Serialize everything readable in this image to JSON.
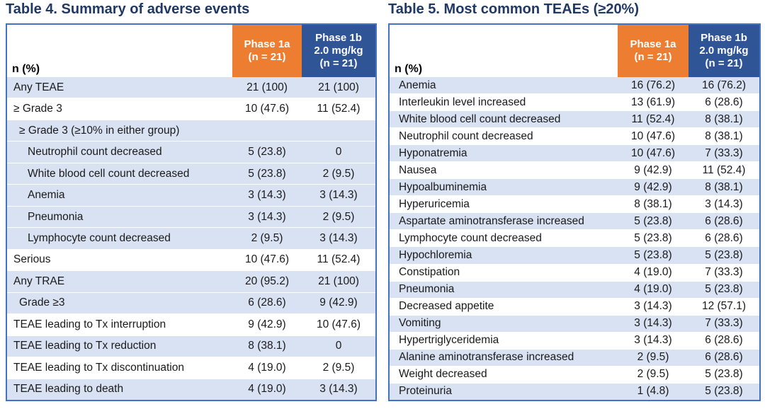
{
  "colors": {
    "title_navy": "#1F3864",
    "header_orange": "#ED7D31",
    "header_blue": "#2F5597",
    "shaded_row_blue": "#D9E2F3",
    "table_border_blue": "#4472C4",
    "header_text": "#FFFFFF",
    "body_text": "#1A1A1A"
  },
  "tables": [
    {
      "title": "Table 4. Summary of adverse events",
      "row_header": "n (%)",
      "columns": [
        {
          "name": "Phase 1a (n = 21)",
          "lines": [
            "Phase 1a",
            "(n = 21)"
          ]
        },
        {
          "name": "Phase 1b 2.0 mg/kg (n = 21)",
          "lines": [
            "Phase 1b",
            "2.0 mg/kg",
            "(n = 21)"
          ]
        }
      ],
      "rows": [
        {
          "label": "Any TEAE",
          "phase1a": "21 (100)",
          "phase1b": "21 (100)",
          "shaded": true,
          "indent": 0
        },
        {
          "label": "≥ Grade 3",
          "phase1a": "10 (47.6)",
          "phase1b": "11 (52.4)",
          "shaded": false,
          "indent": 0
        },
        {
          "label": "≥ Grade 3 (≥10% in either group)",
          "phase1a": "",
          "phase1b": "",
          "shaded": true,
          "indent": 1
        },
        {
          "label": "Neutrophil count decreased",
          "phase1a": "5 (23.8)",
          "phase1b": "0",
          "shaded": true,
          "indent": 2
        },
        {
          "label": "White blood cell count decreased",
          "phase1a": "5 (23.8)",
          "phase1b": "2 (9.5)",
          "shaded": true,
          "indent": 2
        },
        {
          "label": "Anemia",
          "phase1a": "3 (14.3)",
          "phase1b": "3 (14.3)",
          "shaded": true,
          "indent": 2
        },
        {
          "label": "Pneumonia",
          "phase1a": "3 (14.3)",
          "phase1b": "2 (9.5)",
          "shaded": true,
          "indent": 2
        },
        {
          "label": "Lymphocyte count decreased",
          "phase1a": "2 (9.5)",
          "phase1b": "3 (14.3)",
          "shaded": true,
          "indent": 2
        },
        {
          "label": "Serious",
          "phase1a": "10 (47.6)",
          "phase1b": "11 (52.4)",
          "shaded": false,
          "indent": 0
        },
        {
          "label": "Any TRAE",
          "phase1a": "20 (95.2)",
          "phase1b": "21 (100)",
          "shaded": true,
          "indent": 0
        },
        {
          "label": "Grade ≥3",
          "phase1a": "6 (28.6)",
          "phase1b": "9 (42.9)",
          "shaded": true,
          "indent": 1
        },
        {
          "label": "TEAE leading to Tx interruption",
          "phase1a": "9 (42.9)",
          "phase1b": "10 (47.6)",
          "shaded": false,
          "indent": 0
        },
        {
          "label": "TEAE leading to Tx reduction",
          "phase1a": "8 (38.1)",
          "phase1b": "0",
          "shaded": true,
          "indent": 0
        },
        {
          "label": "TEAE leading to Tx discontinuation",
          "phase1a": "4 (19.0)",
          "phase1b": "2 (9.5)",
          "shaded": false,
          "indent": 0
        },
        {
          "label": "TEAE leading to death",
          "phase1a": "4 (19.0)",
          "phase1b": "3 (14.3)",
          "shaded": true,
          "indent": 0
        }
      ]
    },
    {
      "title": "Table 5. Most common TEAEs (≥20%)",
      "row_header": "n (%)",
      "columns": [
        {
          "name": "Phase 1a (n = 21)",
          "lines": [
            "Phase 1a",
            "(n = 21)"
          ]
        },
        {
          "name": "Phase 1b 2.0 mg/kg (n = 21)",
          "lines": [
            "Phase 1b",
            "2.0 mg/kg",
            "(n = 21)"
          ]
        }
      ],
      "rows": [
        {
          "label": "Anemia",
          "phase1a": "16 (76.2)",
          "phase1b": "16 (76.2)",
          "shaded": true,
          "indent": 0
        },
        {
          "label": "Interleukin level increased",
          "phase1a": "13 (61.9)",
          "phase1b": "6 (28.6)",
          "shaded": false,
          "indent": 0
        },
        {
          "label": "White blood cell count decreased",
          "phase1a": "11 (52.4)",
          "phase1b": "8 (38.1)",
          "shaded": true,
          "indent": 0
        },
        {
          "label": "Neutrophil count decreased",
          "phase1a": "10 (47.6)",
          "phase1b": "8 (38.1)",
          "shaded": false,
          "indent": 0
        },
        {
          "label": "Hyponatremia",
          "phase1a": "10 (47.6)",
          "phase1b": "7 (33.3)",
          "shaded": true,
          "indent": 0
        },
        {
          "label": "Nausea",
          "phase1a": "9 (42.9)",
          "phase1b": "11 (52.4)",
          "shaded": false,
          "indent": 0
        },
        {
          "label": "Hypoalbuminemia",
          "phase1a": "9 (42.9)",
          "phase1b": "8 (38.1)",
          "shaded": true,
          "indent": 0
        },
        {
          "label": "Hyperuricemia",
          "phase1a": "8 (38.1)",
          "phase1b": "3 (14.3)",
          "shaded": false,
          "indent": 0
        },
        {
          "label": "Aspartate aminotransferase increased",
          "phase1a": "5 (23.8)",
          "phase1b": "6 (28.6)",
          "shaded": true,
          "indent": 0
        },
        {
          "label": "Lymphocyte count decreased",
          "phase1a": "5 (23.8)",
          "phase1b": "6 (28.6)",
          "shaded": false,
          "indent": 0
        },
        {
          "label": "Hypochloremia",
          "phase1a": "5 (23.8)",
          "phase1b": "5 (23.8)",
          "shaded": true,
          "indent": 0
        },
        {
          "label": "Constipation",
          "phase1a": "4 (19.0)",
          "phase1b": "7 (33.3)",
          "shaded": false,
          "indent": 0
        },
        {
          "label": "Pneumonia",
          "phase1a": "4 (19.0)",
          "phase1b": "5 (23.8)",
          "shaded": true,
          "indent": 0
        },
        {
          "label": "Decreased appetite",
          "phase1a": "3 (14.3)",
          "phase1b": "12 (57.1)",
          "shaded": false,
          "indent": 0
        },
        {
          "label": "Vomiting",
          "phase1a": "3 (14.3)",
          "phase1b": "7 (33.3)",
          "shaded": true,
          "indent": 0
        },
        {
          "label": "Hypertriglyceridemia",
          "phase1a": "3 (14.3)",
          "phase1b": "6 (28.6)",
          "shaded": false,
          "indent": 0
        },
        {
          "label": "Alanine aminotransferase increased",
          "phase1a": "2 (9.5)",
          "phase1b": "6 (28.6)",
          "shaded": true,
          "indent": 0
        },
        {
          "label": "Weight decreased",
          "phase1a": "2 (9.5)",
          "phase1b": "5 (23.8)",
          "shaded": false,
          "indent": 0
        },
        {
          "label": "Proteinuria",
          "phase1a": "1 (4.8)",
          "phase1b": "5 (23.8)",
          "shaded": true,
          "indent": 0
        }
      ]
    }
  ]
}
